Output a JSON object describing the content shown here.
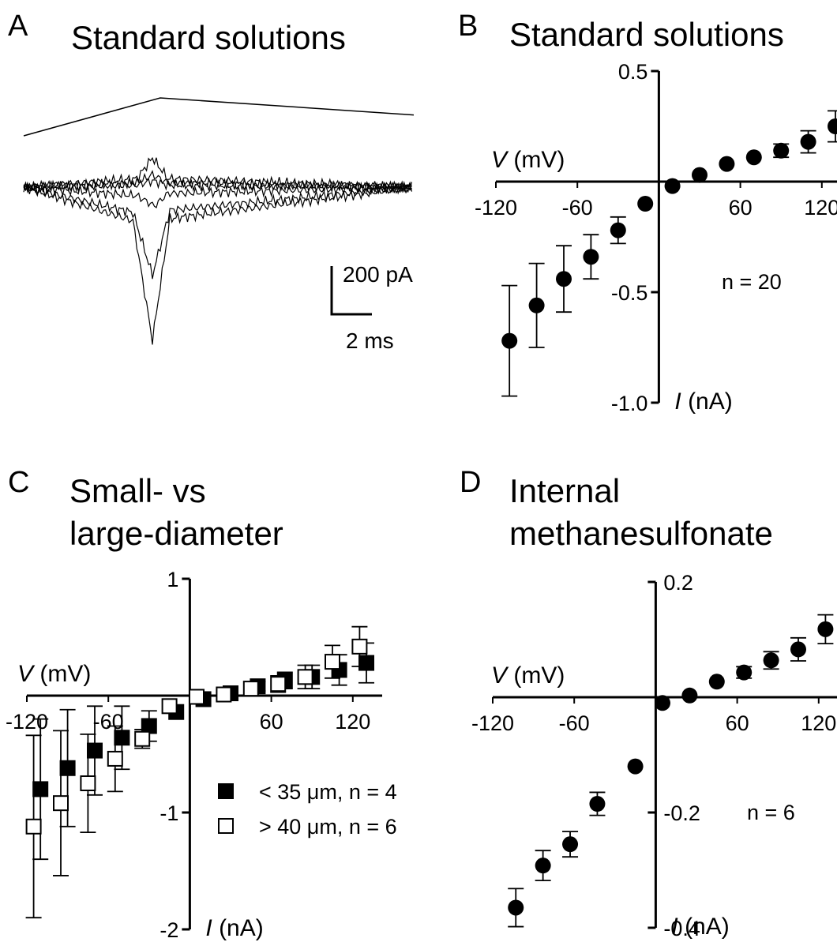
{
  "panels": {
    "A": {
      "letter": "A",
      "title": "Standard solutions",
      "scale_y": "200 pA",
      "scale_x": "2 ms"
    },
    "B": {
      "letter": "B",
      "title": "Standard solutions"
    },
    "C": {
      "letter": "C",
      "title_line1": "Small- vs",
      "title_line2": "large-diameter"
    },
    "D": {
      "letter": "D",
      "title_line1": "Internal",
      "title_line2": "methanesulfonate"
    }
  },
  "chart_data": [
    {
      "panel": "A",
      "type": "line",
      "description_units": {
        "x": "ms",
        "y": "pA"
      },
      "series": [
        {
          "name": "voltage ramp",
          "x": [
            0,
            7.0,
            20.0
          ],
          "y": [
            0,
            1,
            0.55
          ]
        },
        {
          "name": "sweep 1",
          "x": [
            0,
            5.8,
            6.6,
            7.4,
            20
          ],
          "y": [
            0,
            20,
            60,
            20,
            0
          ]
        },
        {
          "name": "sweep 2",
          "x": [
            0,
            5.8,
            6.6,
            7.4,
            20
          ],
          "y": [
            0,
            40,
            140,
            40,
            0
          ]
        },
        {
          "name": "sweep 3",
          "x": [
            0,
            5.8,
            6.6,
            7.4,
            20
          ],
          "y": [
            0,
            10,
            30,
            10,
            0
          ]
        },
        {
          "name": "sweep 4",
          "x": [
            0,
            5.8,
            6.7,
            7.4,
            20
          ],
          "y": [
            0,
            -40,
            -90,
            -30,
            0
          ]
        },
        {
          "name": "sweep 5",
          "x": [
            0,
            5.6,
            6.6,
            7.5,
            20
          ],
          "y": [
            0,
            -120,
            -420,
            -110,
            0
          ]
        },
        {
          "name": "sweep 6",
          "x": [
            0,
            5.6,
            6.6,
            7.5,
            20
          ],
          "y": [
            0,
            -160,
            -730,
            -150,
            0
          ]
        }
      ]
    },
    {
      "panel": "B",
      "type": "scatter",
      "xlabel_italic": "V",
      "xlabel_unit": "(mV)",
      "ylabel_italic": "I",
      "ylabel_unit": "(nA)",
      "xticks": [
        "-120",
        "-60",
        "60",
        "120"
      ],
      "yticks": [
        "0.5",
        "-0.5",
        "-1.0"
      ],
      "xlim": [
        -120,
        130
      ],
      "ylim": [
        -1.0,
        0.5
      ],
      "annotation": "n = 20",
      "series": [
        {
          "marker": "filled-circle",
          "x": [
            -110,
            -90,
            -70,
            -50,
            -30,
            -10,
            10,
            30,
            50,
            70,
            90,
            110,
            130
          ],
          "y": [
            -0.72,
            -0.56,
            -0.44,
            -0.34,
            -0.22,
            -0.1,
            -0.02,
            0.03,
            0.08,
            0.11,
            0.14,
            0.18,
            0.25
          ],
          "err": [
            0.25,
            0.19,
            0.15,
            0.1,
            0.06,
            0,
            0,
            0,
            0,
            0,
            0.03,
            0.05,
            0.07
          ]
        }
      ]
    },
    {
      "panel": "C",
      "type": "scatter",
      "xlabel_italic": "V",
      "xlabel_unit": "(mV)",
      "ylabel_italic": "I",
      "ylabel_unit": "(nA)",
      "xticks": [
        "-120",
        "-60",
        "60",
        "120"
      ],
      "yticks": [
        "1",
        "-1",
        "-2"
      ],
      "xlim": [
        -120,
        130
      ],
      "ylim": [
        -2,
        1
      ],
      "legend": "right",
      "series": [
        {
          "name": "< 35 μm, n = 4",
          "marker": "filled-square",
          "x": [
            -110,
            -90,
            -70,
            -50,
            -30,
            -10,
            10,
            30,
            50,
            70,
            90,
            110,
            130
          ],
          "y": [
            -0.8,
            -0.62,
            -0.47,
            -0.36,
            -0.26,
            -0.14,
            -0.03,
            0.02,
            0.08,
            0.13,
            0.16,
            0.22,
            0.28
          ],
          "err": [
            0.6,
            0.5,
            0.38,
            0.27,
            0.13,
            0,
            0,
            0,
            0.04,
            0.07,
            0.1,
            0.13,
            0.17
          ]
        },
        {
          "name": "> 40 μm, n = 6",
          "marker": "open-square",
          "x": [
            -115,
            -95,
            -75,
            -55,
            -35,
            -15,
            5,
            25,
            45,
            65,
            85,
            105,
            125
          ],
          "y": [
            -1.12,
            -0.92,
            -0.75,
            -0.54,
            -0.37,
            -0.09,
            -0.01,
            0.01,
            0.06,
            0.1,
            0.16,
            0.29,
            0.42
          ],
          "err": [
            0.78,
            0.62,
            0.42,
            0.28,
            0.08,
            0,
            0,
            0,
            0,
            0.07,
            0.1,
            0.14,
            0.17
          ]
        }
      ]
    },
    {
      "panel": "D",
      "type": "scatter",
      "xlabel_italic": "V",
      "xlabel_unit": "(mV)",
      "ylabel_italic": "I",
      "ylabel_unit": "(nA)",
      "xticks": [
        "-120",
        "-60",
        "60",
        "120"
      ],
      "yticks": [
        "0.2",
        "-0.2",
        "-0.4"
      ],
      "xlim": [
        -120,
        130
      ],
      "ylim": [
        -0.4,
        0.2
      ],
      "annotation": "n = 6",
      "series": [
        {
          "marker": "filled-circle",
          "x": [
            -103,
            -83,
            -63,
            -43,
            -15,
            5,
            25,
            45,
            65,
            85,
            105,
            125
          ],
          "y": [
            -0.365,
            -0.292,
            -0.255,
            -0.185,
            -0.12,
            -0.01,
            0.003,
            0.027,
            0.043,
            0.064,
            0.083,
            0.118
          ],
          "err": [
            0.033,
            0.026,
            0.022,
            0.02,
            0,
            0,
            0,
            0,
            0.01,
            0.015,
            0.02,
            0.025
          ]
        }
      ]
    }
  ]
}
